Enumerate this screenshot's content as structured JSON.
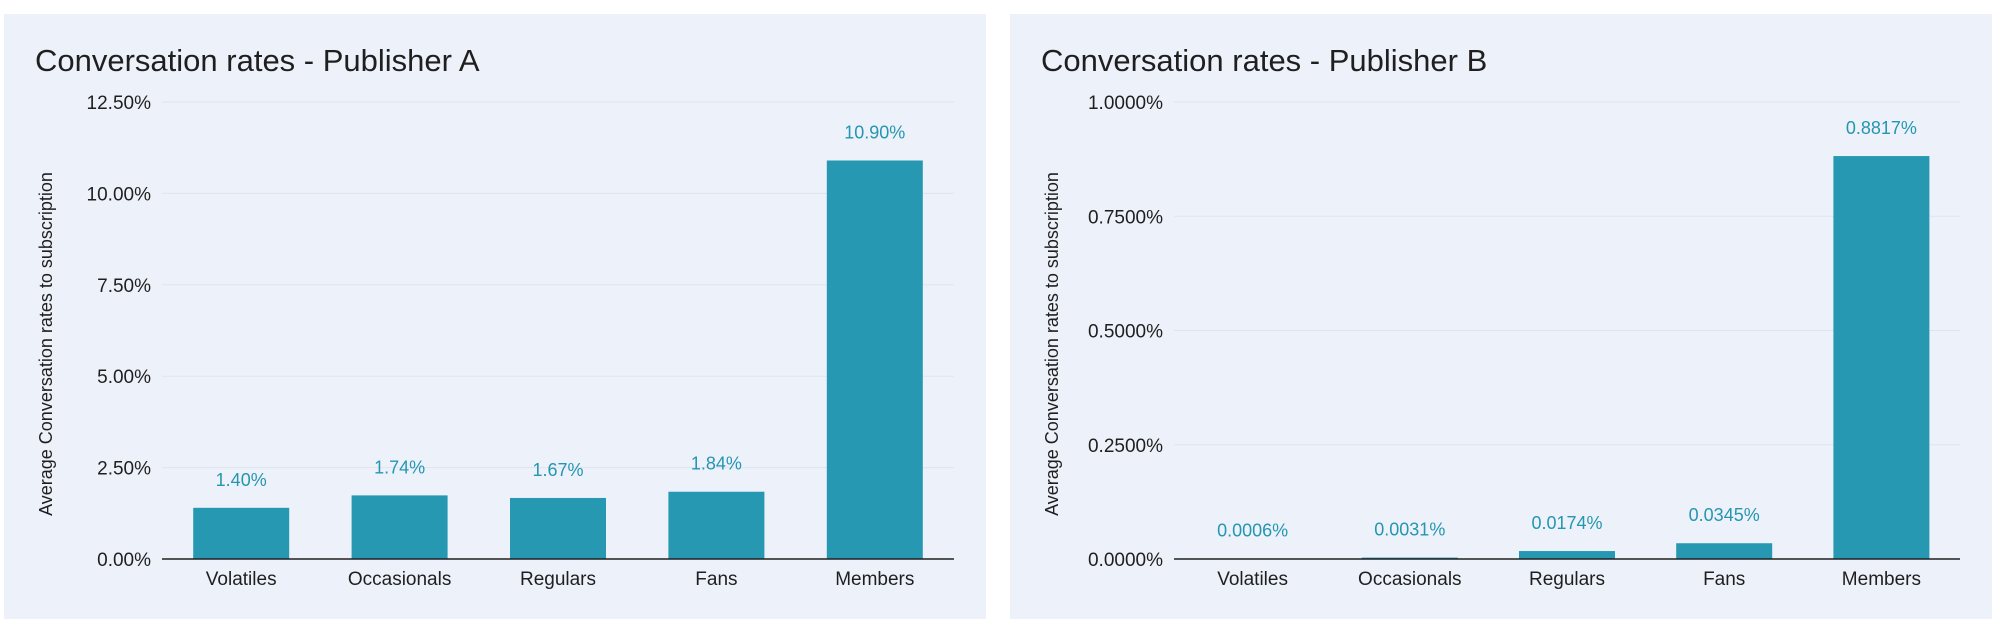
{
  "chart_data": [
    {
      "type": "bar",
      "title": "Conversation rates - Publisher A",
      "xlabel": "",
      "ylabel": "Average Conversation rates to subscription",
      "categories": [
        "Volatiles",
        "Occasionals",
        "Regulars",
        "Fans",
        "Members"
      ],
      "values": [
        1.4,
        1.74,
        1.67,
        1.84,
        10.9
      ],
      "value_labels": [
        "1.40%",
        "1.74%",
        "1.67%",
        "1.84%",
        "10.90%"
      ],
      "ylim": [
        0,
        12.5
      ],
      "yticks": [
        0,
        2.5,
        5.0,
        7.5,
        10.0,
        12.5
      ],
      "ytick_labels": [
        "0.00%",
        "2.50%",
        "5.00%",
        "7.50%",
        "10.00%",
        "12.50%"
      ],
      "grid": true,
      "legend": "none",
      "bar_color": "#2798b2",
      "label_color": "#2596b1"
    },
    {
      "type": "bar",
      "title": "Conversation rates - Publisher B",
      "xlabel": "",
      "ylabel": "Average Conversation rates to subscription",
      "categories": [
        "Volatiles",
        "Occasionals",
        "Regulars",
        "Fans",
        "Members"
      ],
      "values": [
        0.0006,
        0.0031,
        0.0174,
        0.0345,
        0.8817
      ],
      "value_labels": [
        "0.0006%",
        "0.0031%",
        "0.0174%",
        "0.0345%",
        "0.8817%"
      ],
      "ylim": [
        0,
        1.0
      ],
      "yticks": [
        0,
        0.25,
        0.5,
        0.75,
        1.0
      ],
      "ytick_labels": [
        "0.0000%",
        "0.2500%",
        "0.5000%",
        "0.7500%",
        "1.0000%"
      ],
      "grid": true,
      "legend": "none",
      "bar_color": "#2798b2",
      "label_color": "#2596b1"
    }
  ]
}
